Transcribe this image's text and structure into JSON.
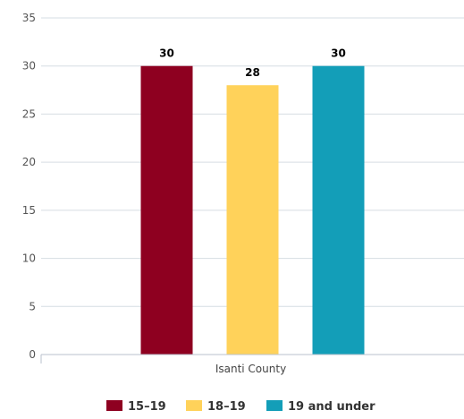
{
  "chart_data": {
    "type": "bar",
    "categories": [
      "Isanti County"
    ],
    "series": [
      {
        "name": "15–19",
        "values": [
          30
        ],
        "color": "#8e0020"
      },
      {
        "name": "18–19",
        "values": [
          28
        ],
        "color": "#ffd25a"
      },
      {
        "name": "19 and under",
        "values": [
          30
        ],
        "color": "#139eb8"
      }
    ],
    "ylim": [
      0,
      35
    ],
    "yticks": [
      0,
      5,
      10,
      15,
      20,
      25,
      30,
      35
    ],
    "grid": true,
    "legend_position": "bottom-center",
    "data_labels": true,
    "title": "",
    "xlabel": "",
    "ylabel": ""
  }
}
